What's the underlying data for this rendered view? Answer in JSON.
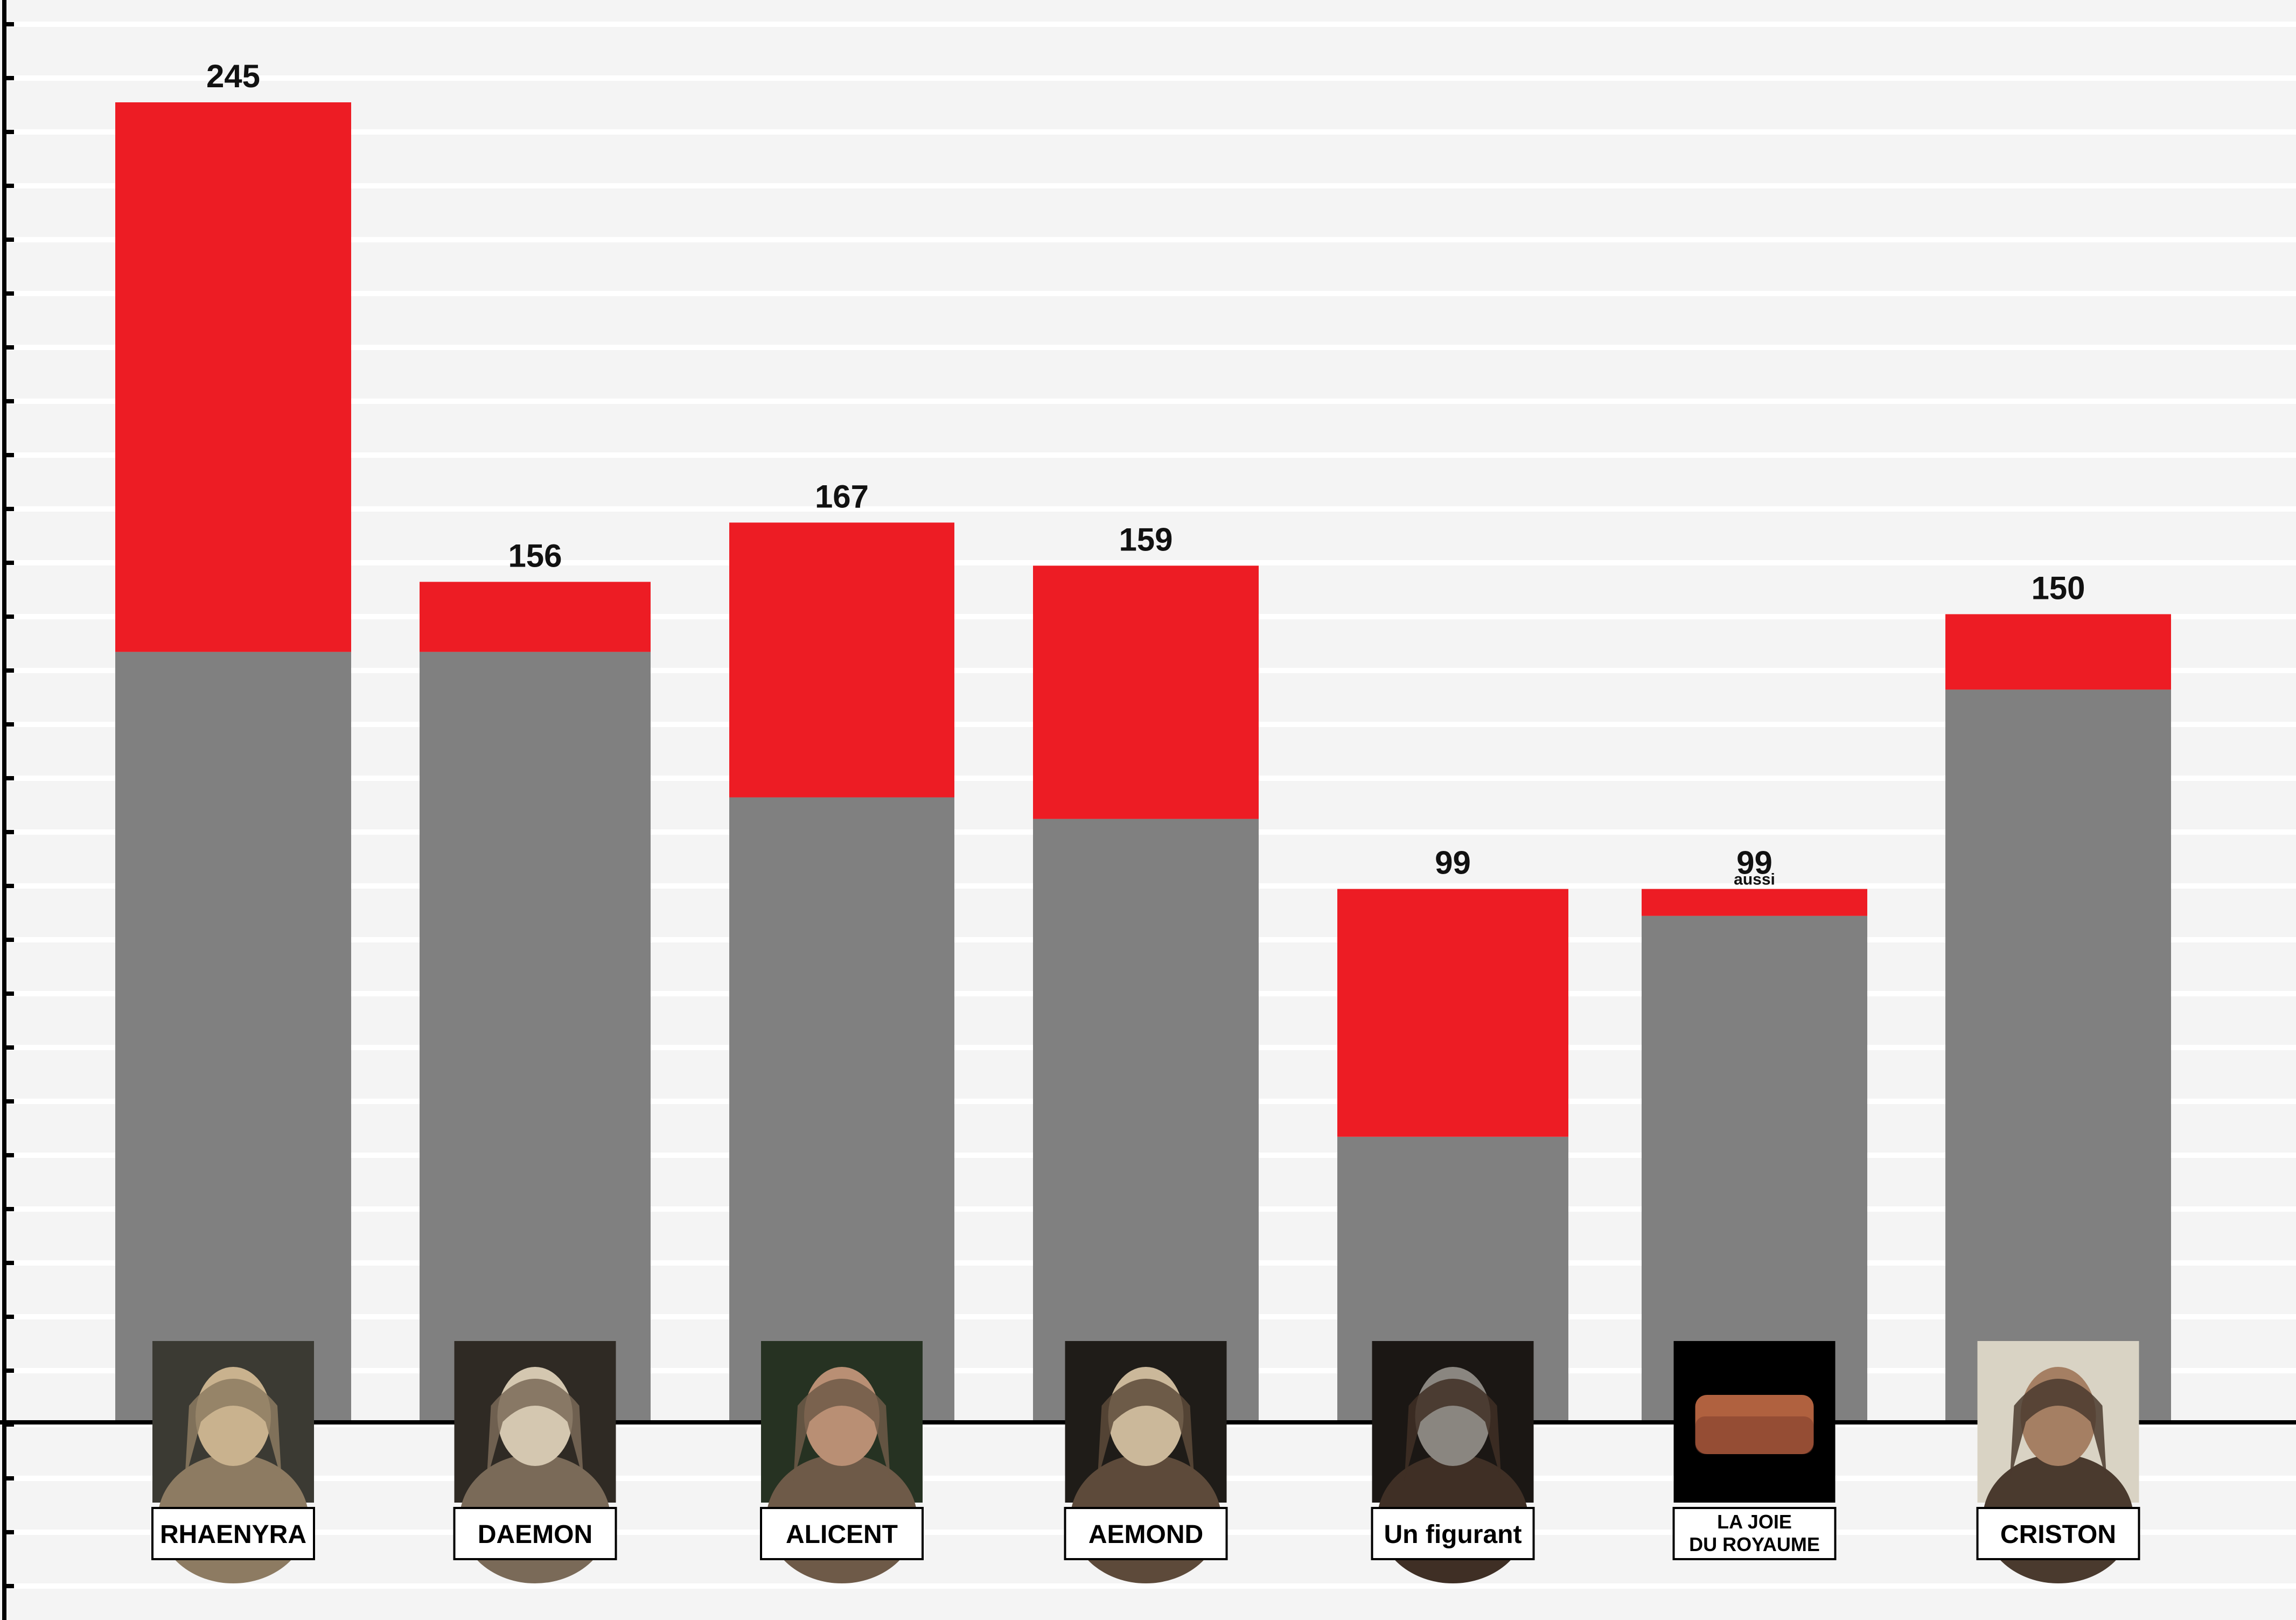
{
  "chart_data": {
    "type": "bar",
    "stacked": true,
    "title": "",
    "xlabel": "",
    "ylabel": "",
    "grid": true,
    "categories": [
      "RHAENYRA",
      "DAEMON",
      "ALICENT",
      "AEMOND",
      "Un figurant",
      "LA JOIE DU ROYAUME",
      "CRISTON"
    ],
    "category_lines": [
      [
        "RHAENYRA"
      ],
      [
        "DAEMON"
      ],
      [
        "ALICENT"
      ],
      [
        "AEMOND"
      ],
      [
        "Un figurant"
      ],
      [
        "LA  JOIE",
        "DU  ROYAUME"
      ],
      [
        "CRISTON"
      ]
    ],
    "label_size": [
      "normal",
      "normal",
      "normal",
      "normal",
      "normal",
      "small",
      "normal"
    ],
    "totals": [
      245,
      156,
      167,
      159,
      99,
      99,
      150
    ],
    "total_labels": [
      "245",
      "156",
      "167",
      "159",
      "99",
      "99",
      "150"
    ],
    "total_sublabels": [
      "",
      "",
      "",
      "",
      "",
      "aussi",
      ""
    ],
    "series": [
      {
        "values": [
          143,
          143,
          116,
          112,
          53,
          94,
          136
        ],
        "color": "#808080"
      },
      {
        "values": [
          102,
          13,
          51,
          47,
          46,
          5,
          14
        ],
        "color": "#ed1c24"
      }
    ],
    "portraits": [
      "crowned-woman-portrait",
      "blond-man-portrait",
      "woman-with-tiara-portrait",
      "eyepatch-man-portrait",
      "bearded-man-portrait",
      "meat-pie-photo",
      "knight-portrait"
    ],
    "ylim": [
      0,
      260
    ]
  },
  "colors": {
    "background": "#f4f4f4",
    "gridline": "#ffffff",
    "axis": "#000000",
    "base_bar": "#808080",
    "top_bar": "#ed1c24"
  }
}
